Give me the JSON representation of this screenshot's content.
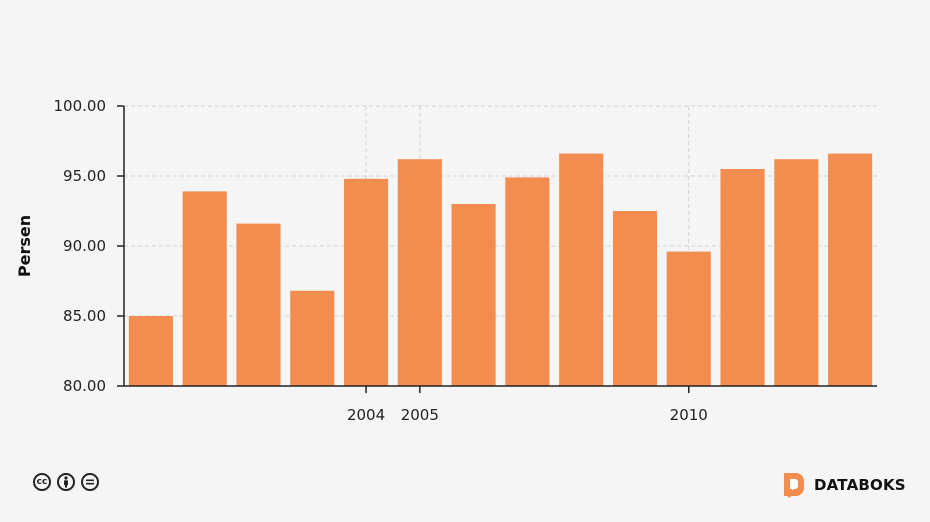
{
  "chart_data": {
    "type": "bar",
    "ylabel": "Persen",
    "ylim": [
      80,
      100
    ],
    "yticks": [
      "80.00",
      "85.00",
      "90.00",
      "95.00",
      "100.00"
    ],
    "ytick_values": [
      80,
      85,
      90,
      95,
      100
    ],
    "xtick_labels": [
      {
        "index": 4,
        "label": "2004"
      },
      {
        "index": 5,
        "label": "2005"
      },
      {
        "index": 10,
        "label": "2010"
      }
    ],
    "values": [
      85.0,
      93.9,
      91.6,
      86.8,
      94.8,
      96.2,
      93.0,
      94.9,
      96.6,
      92.5,
      89.6,
      95.5,
      96.2,
      96.6
    ],
    "bar_color": "#f28c4f",
    "grid": true
  },
  "footer": {
    "license_icons": [
      "cc-icon",
      "by-icon",
      "nd-icon"
    ],
    "brand": "DATABOKS",
    "brand_color": "#f28c4f"
  }
}
